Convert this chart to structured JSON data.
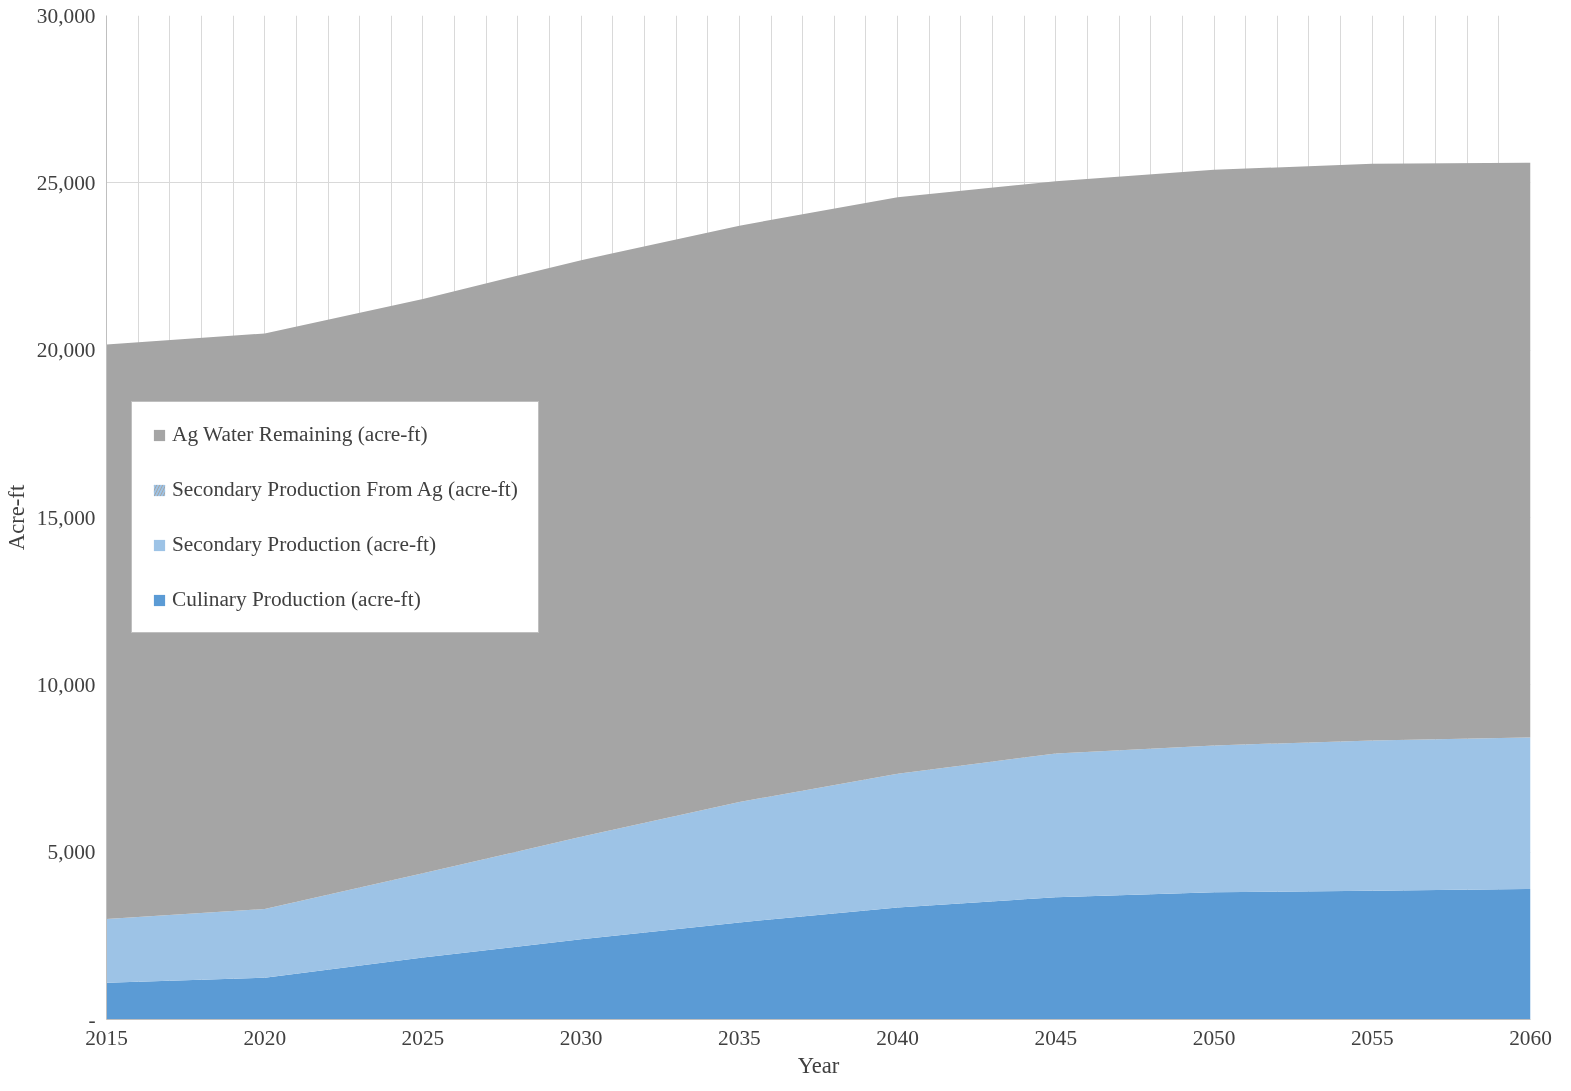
{
  "chart_data": {
    "type": "area",
    "stacked": true,
    "xlabel": "Year",
    "ylabel": "Acre-ft",
    "x": [
      2015,
      2020,
      2025,
      2030,
      2035,
      2040,
      2045,
      2050,
      2055,
      2060
    ],
    "series": [
      {
        "name": "Culinary Production (acre-ft)",
        "color": "#5b9bd5",
        "values": [
          1100,
          1250,
          1850,
          2400,
          2900,
          3350,
          3650,
          3800,
          3850,
          3900
        ]
      },
      {
        "name": "Secondary Production (acre-ft)",
        "color": "#9dc3e6",
        "values": [
          1900,
          2050,
          2520,
          3060,
          3600,
          3990,
          4300,
          4390,
          4490,
          4530
        ]
      },
      {
        "name": "Secondary Production From Ag (acre-ft)",
        "color": "#9dc3e6",
        "values": [
          null,
          null,
          null,
          null,
          null,
          null,
          null,
          null,
          null,
          null
        ]
      },
      {
        "name": "Ag Water Remaining (acre-ft)",
        "color": "#a5a5a5",
        "values": [
          17170,
          17200,
          17160,
          17230,
          17220,
          17230,
          17100,
          17200,
          17230,
          17170
        ]
      }
    ],
    "xlim": [
      2015,
      2060
    ],
    "xticks": [
      2015,
      2020,
      2025,
      2030,
      2035,
      2040,
      2045,
      2050,
      2055,
      2060
    ],
    "ylim": [
      0,
      30000
    ],
    "yticks": [
      {
        "value": 0,
        "label": "-"
      },
      {
        "value": 5000,
        "label": "5,000"
      },
      {
        "value": 10000,
        "label": "10,000"
      },
      {
        "value": 15000,
        "label": "15,000"
      },
      {
        "value": 20000,
        "label": "20,000"
      },
      {
        "value": 25000,
        "label": "25,000"
      },
      {
        "value": 30000,
        "label": "30,000"
      }
    ],
    "grid": true,
    "legend": "center left"
  }
}
